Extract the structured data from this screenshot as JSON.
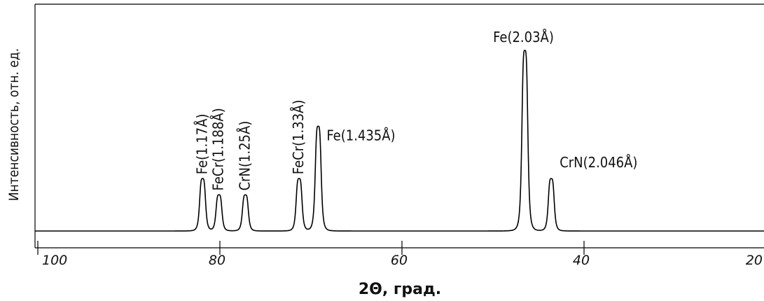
{
  "chart_data": {
    "type": "line",
    "title": "",
    "xlabel": "2Θ, град.",
    "ylabel": "Интенсивность, отн. ед.",
    "xlim": [
      100,
      20
    ],
    "x_reversed": true,
    "ylim": [
      0,
      1.15
    ],
    "grid": false,
    "legend": "none",
    "xticks": [
      {
        "value": 100,
        "label": "100"
      },
      {
        "value": 80,
        "label": "80"
      },
      {
        "value": 60,
        "label": "60"
      },
      {
        "value": 40,
        "label": "40"
      },
      {
        "value": 20,
        "label": "20"
      }
    ],
    "baseline": 0.0,
    "peaks": [
      {
        "x": 81.9,
        "y": 0.29,
        "label": "Fe(1.17Å)",
        "orientation": "vertical"
      },
      {
        "x": 80.1,
        "y": 0.2,
        "label": "FeCr(1.188Å)",
        "orientation": "vertical"
      },
      {
        "x": 77.2,
        "y": 0.2,
        "label": "CrN(1.25Å)",
        "orientation": "vertical"
      },
      {
        "x": 71.3,
        "y": 0.29,
        "label": "FeCr(1.33Å)",
        "orientation": "vertical"
      },
      {
        "x": 69.2,
        "y": 0.58,
        "label": "Fe(1.435Å)",
        "orientation": "horizontal"
      },
      {
        "x": 46.5,
        "y": 1.0,
        "label": "Fe(2.03Å)",
        "orientation": "horizontal"
      },
      {
        "x": 43.6,
        "y": 0.29,
        "label": "CrN(2.046Å)",
        "orientation": "horizontal"
      }
    ]
  }
}
